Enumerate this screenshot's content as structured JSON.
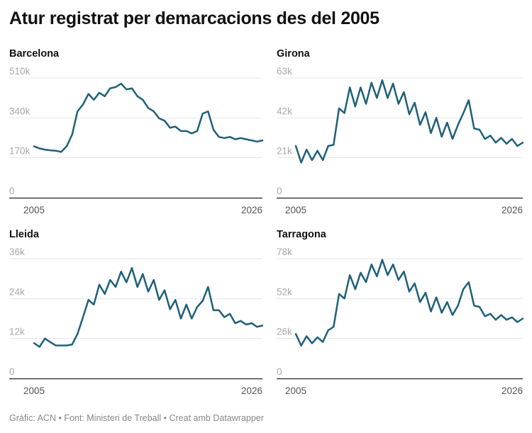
{
  "title": "Atur registrat per demarcacions des del 2005",
  "footer": "Gràfic: ACN • Font: Ministeri de Treball • Creat amb Datawrapper",
  "colors": {
    "line": "#1f6079",
    "grid": "#e6e6e6",
    "tick_text": "#a8a8a8",
    "axis": "#222222"
  },
  "chart_data": [
    {
      "type": "line",
      "title": "Barcelona",
      "xlim": [
        2005,
        2026
      ],
      "ylim": [
        0,
        510000
      ],
      "yticks": [
        0,
        170000,
        340000,
        510000
      ],
      "ytick_labels": [
        "0",
        "170k",
        "340k",
        "510k"
      ],
      "xtick_labels": [
        "2005",
        "2026"
      ],
      "x": [
        2005,
        2005.5,
        2006,
        2006.5,
        2007,
        2007.5,
        2008,
        2008.5,
        2009,
        2009.5,
        2010,
        2010.5,
        2011,
        2011.5,
        2012,
        2012.5,
        2013,
        2013.5,
        2014,
        2014.5,
        2015,
        2015.5,
        2016,
        2016.5,
        2017,
        2017.5,
        2018,
        2018.5,
        2019,
        2019.5,
        2020,
        2020.5,
        2021,
        2021.5,
        2022,
        2022.5,
        2023,
        2023.5,
        2024,
        2024.5,
        2025,
        2025.5,
        2026
      ],
      "values": [
        219000,
        210000,
        205000,
        202000,
        200000,
        195000,
        219000,
        269000,
        368000,
        397000,
        442000,
        417000,
        447000,
        432000,
        466000,
        471000,
        486000,
        461000,
        466000,
        432000,
        417000,
        382000,
        368000,
        338000,
        328000,
        298000,
        303000,
        284000,
        284000,
        274000,
        284000,
        358000,
        368000,
        289000,
        259000,
        254000,
        259000,
        249000,
        254000,
        249000,
        244000,
        239000,
        244000
      ]
    },
    {
      "type": "line",
      "title": "Girona",
      "xlim": [
        2005,
        2026
      ],
      "ylim": [
        0,
        63000
      ],
      "yticks": [
        0,
        21000,
        42000,
        63000
      ],
      "ytick_labels": [
        "0",
        "21k",
        "42k",
        "63k"
      ],
      "xtick_labels": [
        "2005",
        "2026"
      ],
      "x": [
        2005,
        2005.5,
        2006,
        2006.5,
        2007,
        2007.5,
        2008,
        2008.5,
        2009,
        2009.5,
        2010,
        2010.5,
        2011,
        2011.5,
        2012,
        2012.5,
        2013,
        2013.5,
        2014,
        2014.5,
        2015,
        2015.5,
        2016,
        2016.5,
        2017,
        2017.5,
        2018,
        2018.5,
        2019,
        2019.5,
        2020,
        2020.5,
        2021,
        2021.5,
        2022,
        2022.5,
        2023,
        2023.5,
        2024,
        2024.5,
        2025,
        2025.5,
        2026
      ],
      "values": [
        27200,
        18500,
        25300,
        19800,
        24700,
        19800,
        27200,
        27800,
        47000,
        44500,
        58000,
        48000,
        58000,
        49400,
        60500,
        52500,
        61800,
        52500,
        60000,
        49400,
        55600,
        43900,
        50000,
        38300,
        45000,
        34000,
        42000,
        32100,
        39500,
        30900,
        38300,
        44500,
        51300,
        36400,
        35800,
        30900,
        32700,
        29000,
        31500,
        28400,
        30900,
        27200,
        29000
      ]
    },
    {
      "type": "line",
      "title": "Lleida",
      "xlim": [
        2005,
        2026
      ],
      "ylim": [
        0,
        36000
      ],
      "yticks": [
        0,
        12000,
        24000,
        36000
      ],
      "ytick_labels": [
        "0",
        "12k",
        "24k",
        "36k"
      ],
      "xtick_labels": [
        "2005",
        "2026"
      ],
      "x": [
        2005,
        2005.5,
        2006,
        2006.5,
        2007,
        2007.5,
        2008,
        2008.5,
        2009,
        2009.5,
        2010,
        2010.5,
        2011,
        2011.5,
        2012,
        2012.5,
        2013,
        2013.5,
        2014,
        2014.5,
        2015,
        2015.5,
        2016,
        2016.5,
        2017,
        2017.5,
        2018,
        2018.5,
        2019,
        2019.5,
        2020,
        2020.5,
        2021,
        2021.5,
        2022,
        2022.5,
        2023,
        2023.5,
        2024,
        2024.5,
        2025,
        2025.5,
        2026
      ],
      "values": [
        10600,
        9500,
        12000,
        10900,
        9900,
        9900,
        9900,
        10200,
        13400,
        18400,
        23600,
        22200,
        28200,
        25400,
        29600,
        27500,
        32100,
        28900,
        33200,
        27500,
        31400,
        26100,
        29600,
        23600,
        26500,
        20800,
        23600,
        18000,
        22200,
        18000,
        21500,
        23300,
        27500,
        20500,
        20500,
        18400,
        19400,
        16600,
        17300,
        16200,
        16600,
        15500,
        15900
      ]
    },
    {
      "type": "line",
      "title": "Tarragona",
      "xlim": [
        2005,
        2026
      ],
      "ylim": [
        0,
        78000
      ],
      "yticks": [
        0,
        26000,
        52000,
        78000
      ],
      "ytick_labels": [
        "0",
        "26k",
        "52k",
        "78k"
      ],
      "xtick_labels": [
        "2005",
        "2026"
      ],
      "x": [
        2005,
        2005.5,
        2006,
        2006.5,
        2007,
        2007.5,
        2008,
        2008.5,
        2009,
        2009.5,
        2010,
        2010.5,
        2011,
        2011.5,
        2012,
        2012.5,
        2013,
        2013.5,
        2014,
        2014.5,
        2015,
        2015.5,
        2016,
        2016.5,
        2017,
        2017.5,
        2018,
        2018.5,
        2019,
        2019.5,
        2020,
        2020.5,
        2021,
        2021.5,
        2022,
        2022.5,
        2023,
        2023.5,
        2024,
        2024.5,
        2025,
        2025.5,
        2026
      ],
      "values": [
        29000,
        21400,
        27500,
        22900,
        26800,
        23700,
        31400,
        33600,
        55000,
        52000,
        67300,
        58100,
        68800,
        62700,
        74200,
        66500,
        77200,
        67300,
        74200,
        64200,
        69600,
        56600,
        61900,
        49700,
        55800,
        43600,
        52800,
        42800,
        49700,
        41300,
        47400,
        58100,
        62700,
        47400,
        46600,
        40500,
        42100,
        38200,
        41300,
        38200,
        39800,
        36700,
        39000
      ]
    }
  ]
}
